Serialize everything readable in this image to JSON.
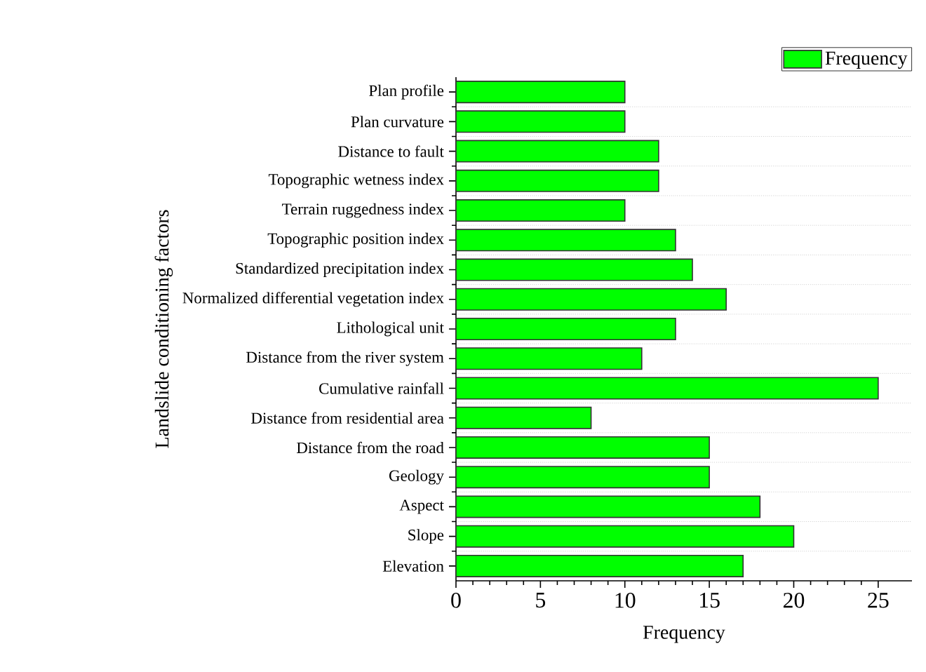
{
  "chart_data": {
    "type": "bar",
    "orientation": "horizontal",
    "xlabel": "Frequency",
    "ylabel": "Landslide conditioning factors",
    "categories": [
      "Plan profile",
      "Plan curvature",
      "Distance to fault",
      "Topographic wetness index",
      "Terrain ruggedness index",
      "Topographic position index",
      "Standardized precipitation index",
      "Normalized differential vegetation index",
      "Lithological unit",
      "Distance from the river system",
      "Cumulative rainfall",
      "Distance from residential area",
      "Distance from the road",
      "Geology",
      "Aspect",
      "Slope",
      "Elevation"
    ],
    "series": [
      {
        "name": "Frequency",
        "color": "#00ff00",
        "values": [
          10,
          10,
          12,
          12,
          10,
          13,
          14,
          16,
          13,
          11,
          25,
          8,
          15,
          15,
          18,
          20,
          17
        ]
      }
    ],
    "xlim": [
      0,
      27
    ],
    "xticks": [
      0,
      5,
      10,
      15,
      20,
      25
    ],
    "grid": "y",
    "legend": "top right"
  }
}
